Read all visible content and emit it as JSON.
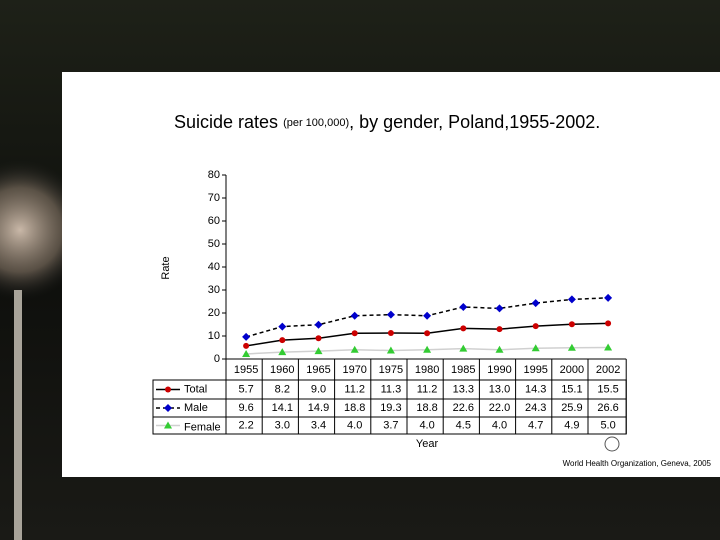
{
  "chart_data": {
    "type": "line",
    "title": [
      "Suicide rates ",
      "(per 100,000)",
      ",  by gender, Poland,1955-2002."
    ],
    "y_label": "Rate",
    "x_label": "Year",
    "source": "World Health Organization, Geneva, 2005",
    "categories": [
      "1955",
      "1960",
      "1965",
      "1970",
      "1975",
      "1980",
      "1985",
      "1990",
      "1995",
      "2000",
      "2002"
    ],
    "ylim": [
      0,
      80
    ],
    "yticks": [
      0,
      10,
      20,
      30,
      40,
      50,
      60,
      70,
      80
    ],
    "series": [
      {
        "name": "Total",
        "color": "#cc0000",
        "line_color": "#000000",
        "dash": false,
        "marker": "circle",
        "values": [
          5.7,
          8.2,
          9.0,
          11.2,
          11.3,
          11.2,
          13.3,
          13.0,
          14.3,
          15.1,
          15.5
        ],
        "value_labels": [
          "5.7",
          "8.2",
          "9.0",
          "11.2",
          "11.3",
          "11.2",
          "13.3",
          "13.0",
          "14.3",
          "15.1",
          "15.5"
        ]
      },
      {
        "name": "Male",
        "color": "#0000cc",
        "line_color": "#000000",
        "dash": true,
        "marker": "diamond",
        "values": [
          9.6,
          14.1,
          14.9,
          18.8,
          19.3,
          18.8,
          22.6,
          22.0,
          24.3,
          25.9,
          26.6
        ],
        "value_labels": [
          "9.6",
          "14.1",
          "14.9",
          "18.8",
          "19.3",
          "18.8",
          "22.6",
          "22.0",
          "24.3",
          "25.9",
          "26.6"
        ]
      },
      {
        "name": "Female",
        "color": "#33cc33",
        "line_color": "#d0d0d0",
        "dash": false,
        "marker": "triangle",
        "values": [
          2.2,
          3.0,
          3.4,
          4.0,
          3.7,
          4.0,
          4.5,
          4.0,
          4.7,
          4.9,
          5.0
        ],
        "value_labels": [
          "2.2",
          "3.0",
          "3.4",
          "4.0",
          "3.7",
          "4.0",
          "4.5",
          "4.0",
          "4.7",
          "4.9",
          "5.0"
        ]
      }
    ]
  }
}
